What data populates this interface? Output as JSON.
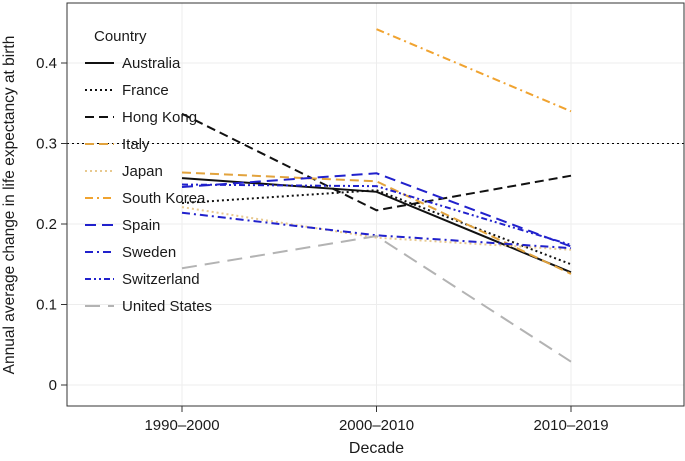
{
  "chart_data": {
    "type": "line",
    "title": "",
    "xlabel": "Decade",
    "ylabel": "Annual average change in life expectancy at birth",
    "legend_title": "Country",
    "legend_position": "top-left-inside",
    "grid": true,
    "categories": [
      "1990–2000",
      "2000–2010",
      "2010–2019"
    ],
    "yticks": [
      0,
      0.1,
      0.2,
      0.3,
      0.4
    ],
    "ytick_labels": [
      "0",
      "0.1",
      "0.2",
      "0.3",
      "0.4"
    ],
    "ylim": [
      -0.027,
      0.475
    ],
    "reference_line": {
      "y": 0.3,
      "style": "dotted",
      "color": "#000000"
    },
    "colors": {
      "black": "#111111",
      "orange_dark": "#e2a33d",
      "orange_pale": "#e8c98f",
      "orange_bright": "#f0a330",
      "blue": "#2121cc",
      "gray": "#b3b3b3",
      "gridline": "#ededed",
      "spine": "#333333"
    },
    "series": [
      {
        "name": "Australia",
        "color": "#111111",
        "dash": "solid",
        "values": [
          0.257,
          0.24,
          0.14
        ]
      },
      {
        "name": "France",
        "color": "#111111",
        "dash": "dotted",
        "values": [
          0.226,
          0.242,
          0.15
        ]
      },
      {
        "name": "Hong Kong",
        "color": "#111111",
        "dash": "dashed",
        "values": [
          0.337,
          0.217,
          0.26
        ]
      },
      {
        "name": "Italy",
        "color": "#e2a33d",
        "dash": "dashed",
        "values": [
          0.264,
          0.253,
          0.138
        ]
      },
      {
        "name": "Japan",
        "color": "#e8c98f",
        "dash": "dotted",
        "values": [
          0.221,
          0.183,
          0.168
        ]
      },
      {
        "name": "South Korea",
        "color": "#f0a330",
        "dash": "dashdot",
        "values": [
          null,
          0.442,
          0.34
        ]
      },
      {
        "name": "Spain",
        "color": "#2121cc",
        "dash": "longdash",
        "values": [
          0.246,
          0.263,
          0.172
        ]
      },
      {
        "name": "Sweden",
        "color": "#2121cc",
        "dash": "dashdot",
        "values": [
          0.214,
          0.186,
          0.17
        ]
      },
      {
        "name": "Switzerland",
        "color": "#2121cc",
        "dash": "dashdotdot",
        "values": [
          0.249,
          0.247,
          0.174
        ]
      },
      {
        "name": "United States",
        "color": "#b3b3b3",
        "dash": "xlongdash",
        "values": [
          0.145,
          0.185,
          0.029
        ]
      }
    ]
  }
}
